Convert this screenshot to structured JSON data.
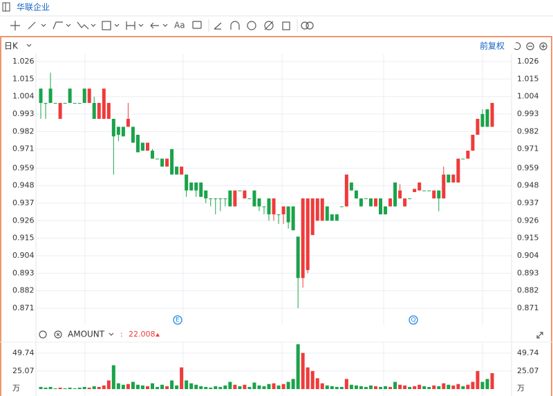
{
  "app": {
    "tab_title": "华联企业",
    "toolbar_text": "Aa"
  },
  "chart_data": {
    "type": "candlestick",
    "period": "日K",
    "adjust": "前复权",
    "up_color": "#ee3b3b",
    "down_color": "#1aa34a",
    "open": [
      1.009,
      1.0,
      1.009,
      1.0,
      0.99,
      1.0,
      1.009,
      1.0,
      1.0,
      1.009,
      1.0,
      1.0,
      0.99,
      0.99,
      0.99,
      0.99,
      0.985,
      0.985,
      0.985,
      0.985,
      0.98,
      0.975,
      0.97,
      0.97,
      0.965,
      0.965,
      0.96,
      0.971,
      0.96,
      0.955,
      0.955,
      0.95,
      0.95,
      0.95,
      0.945,
      0.94,
      0.94,
      0.94,
      0.94,
      0.945,
      0.935,
      0.945,
      0.94,
      0.94,
      0.945,
      0.94,
      0.935,
      0.94,
      0.93,
      0.93,
      0.93,
      0.935,
      0.935,
      0.916,
      0.89,
      0.895,
      0.917,
      0.926,
      0.926,
      0.935,
      0.93,
      0.93,
      0.935,
      0.935,
      0.95,
      0.945,
      0.94,
      0.94,
      0.94,
      0.935,
      0.94,
      0.935,
      0.935,
      0.95,
      0.94,
      0.935,
      0.94,
      0.944,
      0.945,
      0.945,
      0.945,
      0.94,
      0.945,
      0.94,
      0.955,
      0.95,
      0.95,
      0.965,
      0.965,
      0.97,
      0.98,
      0.993,
      0.996,
      0.985
    ],
    "high": [
      1.009,
      1.0,
      1.019,
      1.0,
      1.0,
      1.0,
      1.009,
      1.0,
      1.0,
      1.009,
      1.009,
      1.004,
      1.0,
      1.009,
      1.0,
      0.99,
      0.985,
      0.985,
      1.0,
      0.985,
      0.98,
      0.975,
      0.975,
      0.971,
      0.965,
      0.965,
      0.965,
      0.971,
      0.96,
      0.96,
      0.955,
      0.95,
      0.95,
      0.95,
      0.945,
      0.94,
      0.94,
      0.94,
      0.94,
      0.945,
      0.945,
      0.945,
      0.945,
      0.94,
      0.945,
      0.94,
      0.935,
      0.94,
      0.94,
      0.93,
      0.935,
      0.935,
      0.935,
      0.916,
      0.94,
      0.94,
      0.94,
      0.94,
      0.94,
      0.935,
      0.93,
      0.93,
      0.935,
      0.955,
      0.95,
      0.945,
      0.94,
      0.94,
      0.94,
      0.94,
      0.94,
      0.935,
      0.94,
      0.95,
      0.949,
      0.94,
      0.94,
      0.946,
      0.95,
      0.945,
      0.945,
      0.945,
      0.945,
      0.96,
      0.955,
      0.955,
      0.965,
      0.965,
      0.97,
      0.98,
      0.99,
      0.996,
      0.996,
      1.0
    ],
    "low": [
      0.99,
      0.99,
      1.0,
      1.0,
      0.99,
      1.0,
      1.0,
      1.0,
      1.0,
      1.0,
      1.0,
      0.99,
      0.99,
      0.99,
      0.99,
      0.955,
      0.976,
      0.979,
      0.985,
      0.975,
      0.969,
      0.97,
      0.97,
      0.965,
      0.965,
      0.96,
      0.96,
      0.955,
      0.955,
      0.955,
      0.941,
      0.945,
      0.941,
      0.941,
      0.937,
      0.935,
      0.93,
      0.932,
      0.935,
      0.935,
      0.935,
      0.945,
      0.94,
      0.94,
      0.935,
      0.932,
      0.93,
      0.926,
      0.926,
      0.924,
      0.924,
      0.921,
      0.92,
      0.871,
      0.884,
      0.893,
      0.917,
      0.926,
      0.926,
      0.926,
      0.926,
      0.926,
      0.935,
      0.935,
      0.945,
      0.94,
      0.935,
      0.94,
      0.935,
      0.935,
      0.93,
      0.93,
      0.935,
      0.935,
      0.94,
      0.935,
      0.94,
      0.944,
      0.945,
      0.945,
      0.945,
      0.94,
      0.932,
      0.94,
      0.95,
      0.95,
      0.95,
      0.965,
      0.965,
      0.97,
      0.98,
      0.985,
      0.985,
      0.985
    ],
    "close": [
      1.0,
      1.0,
      1.0,
      1.0,
      1.0,
      1.0,
      1.0,
      1.0,
      1.0,
      1.0,
      1.009,
      0.99,
      1.0,
      1.009,
      1.0,
      0.979,
      0.98,
      0.979,
      0.99,
      0.975,
      0.969,
      0.97,
      0.975,
      0.965,
      0.965,
      0.96,
      0.965,
      0.955,
      0.955,
      0.96,
      0.945,
      0.945,
      0.945,
      0.941,
      0.94,
      0.94,
      0.94,
      0.94,
      0.94,
      0.935,
      0.945,
      0.945,
      0.945,
      0.94,
      0.935,
      0.935,
      0.935,
      0.93,
      0.94,
      0.93,
      0.935,
      0.925,
      0.92,
      0.89,
      0.94,
      0.94,
      0.94,
      0.94,
      0.94,
      0.926,
      0.926,
      0.926,
      0.935,
      0.955,
      0.945,
      0.94,
      0.935,
      0.94,
      0.935,
      0.94,
      0.93,
      0.93,
      0.94,
      0.935,
      0.945,
      0.94,
      0.94,
      0.946,
      0.95,
      0.945,
      0.945,
      0.945,
      0.94,
      0.955,
      0.95,
      0.955,
      0.965,
      0.965,
      0.97,
      0.98,
      0.99,
      0.985,
      0.985,
      1.0
    ],
    "ylim": [
      0.8606,
      1.0308
    ],
    "yticks": [
      1.026,
      1.015,
      1.004,
      0.993,
      0.982,
      0.971,
      0.959,
      0.948,
      0.937,
      0.926,
      0.915,
      0.904,
      0.893,
      0.882,
      0.871
    ],
    "markers": [
      {
        "label": "E"
      },
      {
        "label": "Q"
      }
    ],
    "volume": {
      "name": "AMOUNT",
      "prefix": ":",
      "unit": "万",
      "values": [
        3,
        2,
        3,
        1,
        2,
        1,
        2,
        1,
        2,
        3,
        2,
        4,
        3,
        5,
        12,
        33,
        8,
        6,
        7,
        10,
        6,
        5,
        4,
        8,
        3,
        6,
        4,
        12,
        5,
        30,
        12,
        8,
        6,
        4,
        3,
        2,
        4,
        3,
        5,
        10,
        6,
        4,
        6,
        3,
        9,
        5,
        4,
        7,
        8,
        5,
        7,
        10,
        14,
        62,
        50,
        30,
        25,
        15,
        8,
        5,
        4,
        3,
        3,
        14,
        6,
        5,
        4,
        3,
        5,
        4,
        3,
        4,
        3,
        10,
        6,
        5,
        3,
        4,
        6,
        4,
        3,
        5,
        4,
        8,
        6,
        5,
        7,
        4,
        6,
        10,
        25,
        10,
        14,
        22.008
      ],
      "ylim": [
        0,
        65
      ],
      "yticks": [
        49.74,
        25.07
      ]
    }
  }
}
